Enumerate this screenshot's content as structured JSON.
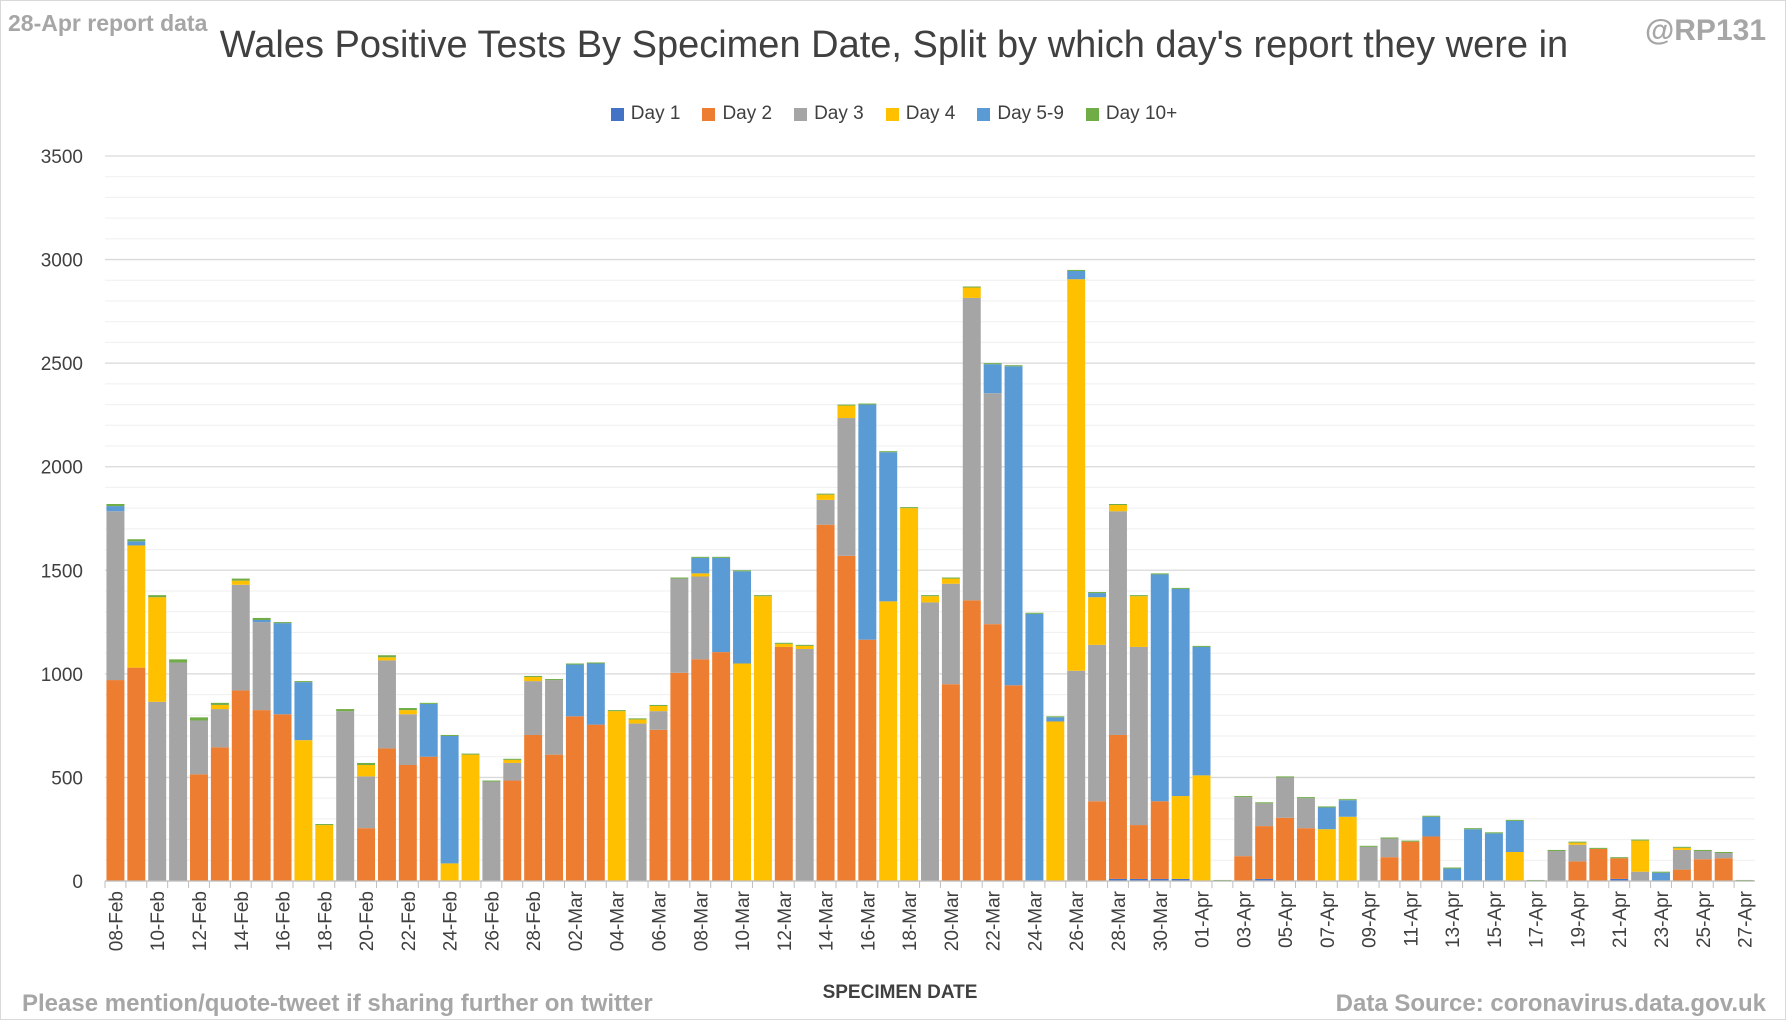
{
  "header": {
    "report_note": "28-Apr report data",
    "handle": "@RP131"
  },
  "footer": {
    "share_note": "Please mention/quote-tweet if sharing further on twitter",
    "source": "Data Source: coronavirus.data.gov.uk"
  },
  "colors": {
    "Day 1": "#4472c4",
    "Day 2": "#ed7d31",
    "Day 3": "#a5a5a5",
    "Day 4": "#ffc000",
    "Day 5-9": "#5b9bd5",
    "Day 10+": "#70ad47",
    "grid": "#d9d9d9",
    "axis": "#bfbfbf"
  },
  "chart_data": {
    "type": "bar",
    "stacked": true,
    "title": "Wales Positive Tests By Specimen Date, Split by which day's report they were in",
    "xlabel": "SPECIMEN DATE",
    "ylabel": "",
    "ylim": [
      0,
      3500
    ],
    "yticks": [
      0,
      500,
      1000,
      1500,
      2000,
      2500,
      3000,
      3500
    ],
    "grid": true,
    "legend_position": "top",
    "x_tick_labels": [
      "08-Feb",
      "10-Feb",
      "12-Feb",
      "14-Feb",
      "16-Feb",
      "18-Feb",
      "20-Feb",
      "22-Feb",
      "24-Feb",
      "26-Feb",
      "28-Feb",
      "02-Mar",
      "04-Mar",
      "06-Mar",
      "08-Mar",
      "10-Mar",
      "12-Mar",
      "14-Mar",
      "16-Mar",
      "18-Mar",
      "20-Mar",
      "22-Mar",
      "24-Mar",
      "26-Mar",
      "28-Mar",
      "30-Mar",
      "01-Apr",
      "03-Apr",
      "05-Apr",
      "07-Apr",
      "09-Apr",
      "11-Apr",
      "13-Apr",
      "15-Apr",
      "17-Apr",
      "19-Apr",
      "21-Apr",
      "23-Apr",
      "25-Apr",
      "27-Apr"
    ],
    "categories": [
      "08-Feb",
      "09-Feb",
      "10-Feb",
      "11-Feb",
      "12-Feb",
      "13-Feb",
      "14-Feb",
      "15-Feb",
      "16-Feb",
      "17-Feb",
      "18-Feb",
      "19-Feb",
      "20-Feb",
      "21-Feb",
      "22-Feb",
      "23-Feb",
      "24-Feb",
      "25-Feb",
      "26-Feb",
      "27-Feb",
      "28-Feb",
      "01-Mar",
      "02-Mar",
      "03-Mar",
      "04-Mar",
      "05-Mar",
      "06-Mar",
      "07-Mar",
      "08-Mar",
      "09-Mar",
      "10-Mar",
      "11-Mar",
      "12-Mar",
      "13-Mar",
      "14-Mar",
      "15-Mar",
      "16-Mar",
      "17-Mar",
      "18-Mar",
      "19-Mar",
      "20-Mar",
      "21-Mar",
      "22-Mar",
      "23-Mar",
      "24-Mar",
      "25-Mar",
      "26-Mar",
      "27-Mar",
      "28-Mar",
      "29-Mar",
      "30-Mar",
      "31-Mar",
      "01-Apr",
      "02-Apr",
      "03-Apr",
      "04-Apr",
      "05-Apr",
      "06-Apr",
      "07-Apr",
      "08-Apr",
      "09-Apr",
      "10-Apr",
      "11-Apr",
      "12-Apr",
      "13-Apr",
      "14-Apr",
      "15-Apr",
      "16-Apr",
      "17-Apr",
      "18-Apr",
      "19-Apr",
      "20-Apr",
      "21-Apr",
      "22-Apr",
      "23-Apr",
      "24-Apr",
      "25-Apr",
      "26-Apr",
      "27-Apr"
    ],
    "series": [
      {
        "name": "Day 1",
        "values": [
          0,
          0,
          0,
          0,
          0,
          0,
          0,
          0,
          0,
          0,
          0,
          0,
          0,
          0,
          0,
          0,
          0,
          0,
          0,
          0,
          0,
          0,
          0,
          0,
          0,
          0,
          0,
          0,
          0,
          0,
          0,
          0,
          0,
          0,
          0,
          0,
          0,
          0,
          0,
          0,
          0,
          0,
          0,
          0,
          0,
          0,
          0,
          0,
          10,
          10,
          10,
          10,
          0,
          0,
          0,
          10,
          0,
          0,
          0,
          0,
          0,
          0,
          0,
          0,
          0,
          0,
          0,
          0,
          0,
          0,
          0,
          0,
          10,
          0,
          0,
          0,
          0,
          0,
          0
        ]
      },
      {
        "name": "Day 2",
        "values": [
          970,
          1030,
          0,
          0,
          515,
          645,
          920,
          825,
          805,
          0,
          0,
          0,
          255,
          640,
          560,
          600,
          0,
          0,
          0,
          485,
          705,
          610,
          795,
          755,
          0,
          0,
          730,
          1005,
          1070,
          1105,
          0,
          0,
          1130,
          0,
          1720,
          1570,
          1165,
          0,
          0,
          0,
          950,
          1355,
          1240,
          945,
          0,
          0,
          0,
          385,
          695,
          260,
          375,
          0,
          0,
          0,
          120,
          255,
          305,
          255,
          0,
          0,
          0,
          115,
          190,
          215,
          0,
          0,
          0,
          0,
          0,
          0,
          95,
          155,
          100,
          0,
          0,
          55,
          105,
          110,
          0
        ]
      },
      {
        "name": "Day 3",
        "values": [
          815,
          0,
          865,
          1055,
          260,
          185,
          510,
          425,
          0,
          0,
          0,
          820,
          250,
          425,
          245,
          0,
          0,
          0,
          480,
          85,
          260,
          360,
          0,
          0,
          0,
          760,
          90,
          455,
          400,
          0,
          0,
          0,
          0,
          1120,
          120,
          665,
          0,
          0,
          0,
          1345,
          485,
          1460,
          1115,
          0,
          0,
          0,
          1015,
          755,
          1080,
          860,
          0,
          0,
          0,
          0,
          285,
          110,
          195,
          145,
          0,
          0,
          165,
          90,
          0,
          0,
          0,
          0,
          0,
          0,
          0,
          145,
          80,
          0,
          0,
          45,
          0,
          95,
          40,
          25,
          0
        ]
      },
      {
        "name": "Day 4",
        "values": [
          0,
          590,
          505,
          0,
          0,
          20,
          20,
          0,
          0,
          680,
          270,
          0,
          55,
          15,
          20,
          0,
          85,
          610,
          0,
          15,
          20,
          0,
          0,
          0,
          820,
          20,
          25,
          0,
          15,
          0,
          1050,
          1375,
          15,
          15,
          25,
          60,
          0,
          1350,
          1800,
          30,
          25,
          50,
          0,
          0,
          0,
          770,
          1890,
          230,
          30,
          245,
          0,
          400,
          510,
          0,
          0,
          0,
          0,
          0,
          250,
          310,
          0,
          0,
          0,
          0,
          0,
          0,
          0,
          140,
          0,
          0,
          10,
          0,
          0,
          150,
          0,
          10,
          0,
          0,
          0
        ]
      },
      {
        "name": "Day 5-9",
        "values": [
          25,
          20,
          0,
          0,
          0,
          0,
          0,
          10,
          440,
          280,
          0,
          0,
          0,
          0,
          0,
          255,
          615,
          0,
          0,
          0,
          0,
          0,
          250,
          295,
          0,
          0,
          0,
          0,
          75,
          455,
          445,
          0,
          0,
          0,
          0,
          0,
          1135,
          720,
          0,
          0,
          0,
          0,
          140,
          1540,
          1290,
          20,
          40,
          20,
          0,
          0,
          1095,
          1000,
          620,
          0,
          0,
          0,
          0,
          0,
          105,
          80,
          0,
          0,
          0,
          95,
          60,
          250,
          230,
          150,
          0,
          0,
          0,
          0,
          0,
          0,
          40,
          0,
          0,
          0,
          0
        ]
      },
      {
        "name": "Day 10+",
        "values": [
          10,
          10,
          10,
          15,
          15,
          10,
          10,
          10,
          5,
          5,
          5,
          10,
          10,
          10,
          10,
          5,
          5,
          5,
          5,
          5,
          5,
          5,
          5,
          5,
          5,
          5,
          5,
          5,
          5,
          5,
          5,
          5,
          5,
          5,
          5,
          5,
          5,
          5,
          5,
          5,
          5,
          5,
          5,
          5,
          5,
          5,
          5,
          5,
          5,
          5,
          5,
          5,
          5,
          5,
          5,
          5,
          5,
          5,
          5,
          5,
          5,
          5,
          5,
          5,
          5,
          5,
          5,
          5,
          5,
          5,
          5,
          5,
          5,
          5,
          5,
          5,
          5,
          5,
          5
        ]
      }
    ]
  }
}
